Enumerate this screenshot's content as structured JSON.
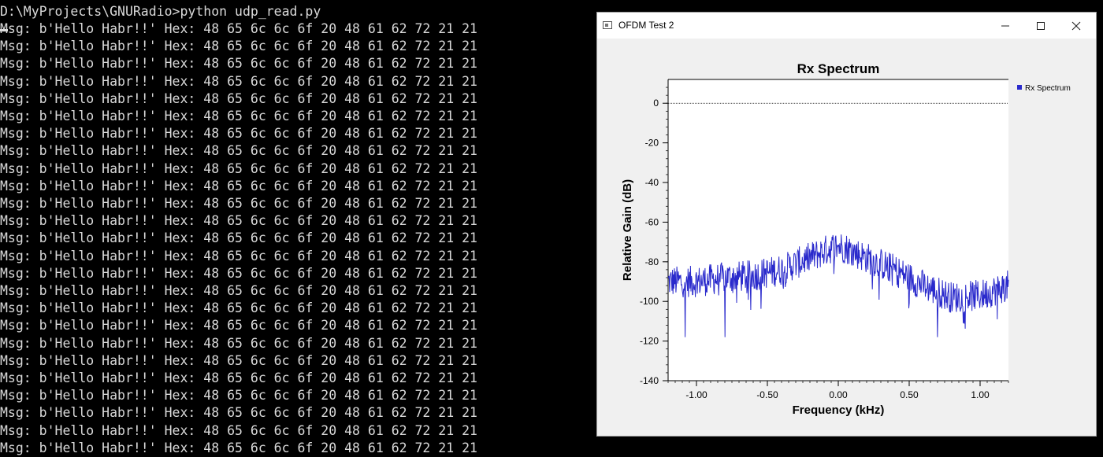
{
  "console": {
    "prompt_line": "D:\\MyProjects\\GNURadio>python udp_read.py",
    "lines": [
      "Msg: b'Hello Habr!!' Hex: 48 65 6c 6c 6f 20 48 61 62 72 21 21",
      "Msg: b'Hello Habr!!' Hex: 48 65 6c 6c 6f 20 48 61 62 72 21 21",
      "Msg: b'Hello Habr!!' Hex: 48 65 6c 6c 6f 20 48 61 62 72 21 21",
      "Msg: b'Hello Habr!!' Hex: 48 65 6c 6c 6f 20 48 61 62 72 21 21",
      "Msg: b'Hello Habr!!' Hex: 48 65 6c 6c 6f 20 48 61 62 72 21 21",
      "Msg: b'Hello Habr!!' Hex: 48 65 6c 6c 6f 20 48 61 62 72 21 21",
      "Msg: b'Hello Habr!!' Hex: 48 65 6c 6c 6f 20 48 61 62 72 21 21",
      "Msg: b'Hello Habr!!' Hex: 48 65 6c 6c 6f 20 48 61 62 72 21 21",
      "Msg: b'Hello Habr!!' Hex: 48 65 6c 6c 6f 20 48 61 62 72 21 21",
      "Msg: b'Hello Habr!!' Hex: 48 65 6c 6c 6f 20 48 61 62 72 21 21",
      "Msg: b'Hello Habr!!' Hex: 48 65 6c 6c 6f 20 48 61 62 72 21 21",
      "Msg: b'Hello Habr!!' Hex: 48 65 6c 6c 6f 20 48 61 62 72 21 21",
      "Msg: b'Hello Habr!!' Hex: 48 65 6c 6c 6f 20 48 61 62 72 21 21",
      "Msg: b'Hello Habr!!' Hex: 48 65 6c 6c 6f 20 48 61 62 72 21 21",
      "Msg: b'Hello Habr!!' Hex: 48 65 6c 6c 6f 20 48 61 62 72 21 21",
      "Msg: b'Hello Habr!!' Hex: 48 65 6c 6c 6f 20 48 61 62 72 21 21",
      "Msg: b'Hello Habr!!' Hex: 48 65 6c 6c 6f 20 48 61 62 72 21 21",
      "Msg: b'Hello Habr!!' Hex: 48 65 6c 6c 6f 20 48 61 62 72 21 21",
      "Msg: b'Hello Habr!!' Hex: 48 65 6c 6c 6f 20 48 61 62 72 21 21",
      "Msg: b'Hello Habr!!' Hex: 48 65 6c 6c 6f 20 48 61 62 72 21 21",
      "Msg: b'Hello Habr!!' Hex: 48 65 6c 6c 6f 20 48 61 62 72 21 21",
      "Msg: b'Hello Habr!!' Hex: 48 65 6c 6c 6f 20 48 61 62 72 21 21",
      "Msg: b'Hello Habr!!' Hex: 48 65 6c 6c 6f 20 48 61 62 72 21 21",
      "Msg: b'Hello Habr!!' Hex: 48 65 6c 6c 6f 20 48 61 62 72 21 21",
      "Msg: b'Hello Habr!!' Hex: 48 65 6c 6c 6f 20 48 61 62 72 21 21"
    ]
  },
  "window": {
    "title": "OFDM Test 2",
    "app_icon": "window-icon",
    "controls": {
      "minimize_icon": "minimize-icon",
      "maximize_icon": "maximize-icon",
      "close_icon": "close-icon"
    }
  },
  "chart_data": {
    "type": "line",
    "title": "Rx Spectrum",
    "xlabel": "Frequency (kHz)",
    "ylabel": "Relative Gain (dB)",
    "xlim": [
      -1.2,
      1.2
    ],
    "ylim": [
      -140,
      12
    ],
    "xticks": [
      -1.0,
      -0.5,
      0.0,
      0.5,
      1.0
    ],
    "xtick_labels": [
      "-1.00",
      "-0.50",
      "0.00",
      "0.50",
      "1.00"
    ],
    "yticks": [
      0,
      -20,
      -40,
      -60,
      -80,
      -100,
      -120,
      -140
    ],
    "ytick_labels": [
      "0",
      "-20",
      "-40",
      "-60",
      "-80",
      "-100",
      "-120",
      "-140"
    ],
    "reference_line_y": 0,
    "legend_position": "right",
    "series": [
      {
        "name": "Rx Spectrum",
        "color": "#2a2acc",
        "envelope": {
          "x": [
            -1.2,
            -1.0,
            -0.8,
            -0.6,
            -0.4,
            -0.2,
            -0.05,
            0.0,
            0.05,
            0.2,
            0.4,
            0.6,
            0.8,
            1.0,
            1.2
          ],
          "y": [
            -90,
            -90,
            -88,
            -87,
            -84,
            -78,
            -73,
            -72,
            -73,
            -78,
            -84,
            -92,
            -98,
            -97,
            -92
          ]
        },
        "spikes": [
          {
            "x": -1.08,
            "y": -118
          },
          {
            "x": -0.8,
            "y": -118
          },
          {
            "x": 0.7,
            "y": -118
          },
          {
            "x": 1.12,
            "y": -109
          }
        ]
      }
    ],
    "legend": [
      {
        "label": "Rx Spectrum",
        "color": "#2a2acc"
      }
    ]
  }
}
